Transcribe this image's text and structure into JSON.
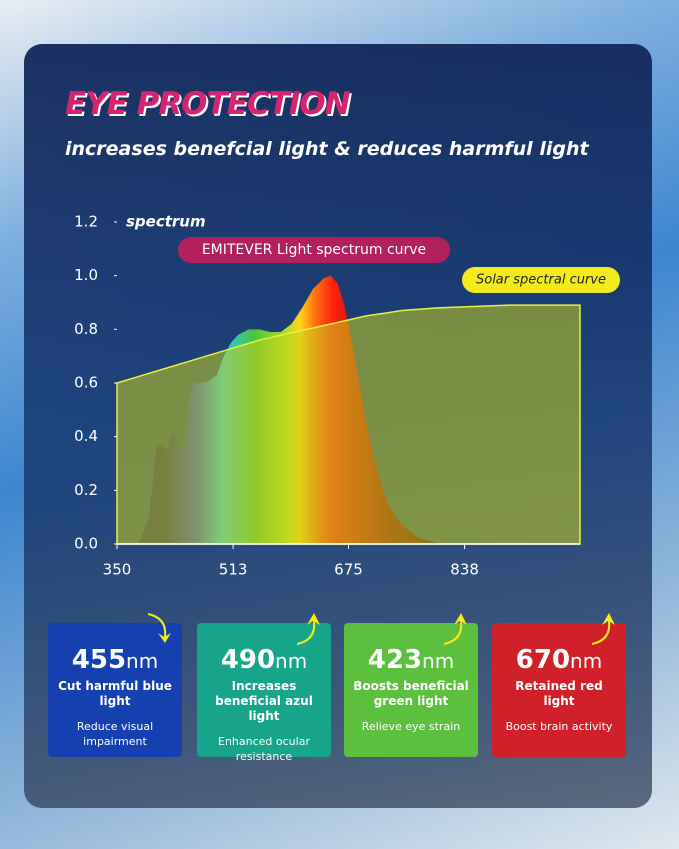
{
  "header": {
    "title": "EYE PROTECTION",
    "subtitle": "increases benefcial light & reduces harmful light"
  },
  "chart_data": {
    "type": "area",
    "y_label": "spectrum",
    "xlim": [
      350,
      1000
    ],
    "xticks": [
      350,
      513,
      675,
      838
    ],
    "ylim": [
      0,
      1.2
    ],
    "yticks": [
      {
        "value": 0,
        "label": "0.0"
      },
      0.2,
      0.4,
      0.6,
      0.8,
      {
        "value": 1,
        "label": "1.0"
      },
      1.2
    ],
    "series": [
      {
        "name": "Solar spectral curve",
        "color": "#c6d01c",
        "x": [
          350,
          400,
          450,
          500,
          550,
          600,
          650,
          700,
          750,
          800,
          850,
          900,
          950,
          1000
        ],
        "values": [
          0.6,
          0.64,
          0.68,
          0.72,
          0.76,
          0.79,
          0.82,
          0.85,
          0.87,
          0.88,
          0.885,
          0.89,
          0.89,
          0.89
        ]
      },
      {
        "name": "EMITEVER Light spectrum curve",
        "x": [
          380,
          395,
          405,
          412,
          420,
          428,
          435,
          445,
          452,
          460,
          470,
          480,
          490,
          500,
          510,
          520,
          535,
          550,
          565,
          580,
          595,
          610,
          625,
          640,
          650,
          660,
          670,
          680,
          690,
          700,
          715,
          730,
          750,
          775,
          800,
          838
        ],
        "values": [
          0,
          0.1,
          0.36,
          0.37,
          0.35,
          0.42,
          0.38,
          0.35,
          0.57,
          0.6,
          0.6,
          0.61,
          0.63,
          0.7,
          0.75,
          0.78,
          0.8,
          0.8,
          0.79,
          0.79,
          0.82,
          0.88,
          0.95,
          0.99,
          1.0,
          0.97,
          0.88,
          0.75,
          0.6,
          0.45,
          0.28,
          0.15,
          0.07,
          0.02,
          0.005,
          0
        ]
      }
    ]
  },
  "cards": [
    {
      "value": 455,
      "unit": "nm",
      "title": "Cut harmful blue light",
      "note": "Reduce visual impairment"
    },
    {
      "value": 490,
      "unit": "nm",
      "title": "Increases beneficial azul light",
      "note": "Enhanced ocular resistance"
    },
    {
      "value": 423,
      "unit": "nm",
      "title": "Boosts beneficial green light",
      "note": "Relieve eye strain"
    },
    {
      "value": 670,
      "unit": "nm",
      "title": "Retained red light",
      "note": "Boost brain activity"
    }
  ]
}
